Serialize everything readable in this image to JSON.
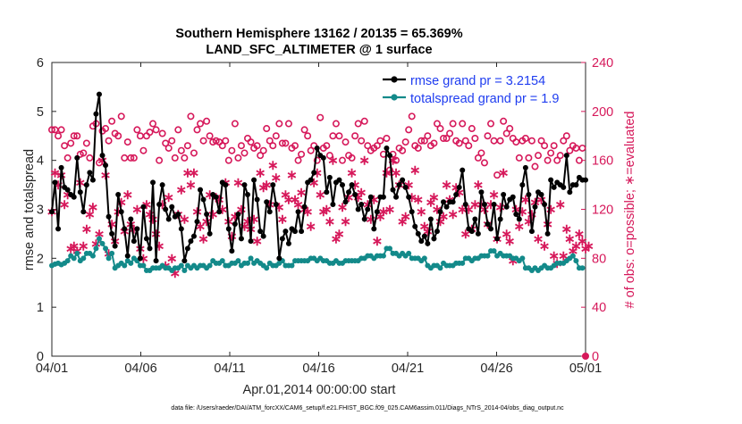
{
  "chart_data": {
    "type": "line",
    "title": "Southern Hemisphere 13162 / 20135 = 65.369%",
    "subtitle": "LAND_SFC_ALTIMETER @ 1 surface",
    "xlabel": "Apr.01,2014 00:00:00 start",
    "ylabel_left": "rmse and totalspread",
    "ylabel_right": "# of obs: o=possible; ∗=evaluated",
    "footnote": "data file: /Users/raeder/DAI/ATM_forcXX/CAM6_setup/f.e21.FHIST_BGC.f09_025.CAM6assim.011/Diags_NTrS_2014-04/obs_diag_output.nc",
    "x_ticks": [
      "04/01",
      "04/06",
      "04/11",
      "04/16",
      "04/21",
      "04/26",
      "05/01"
    ],
    "xlim_days": [
      0,
      30
    ],
    "ylim_left": [
      0,
      6
    ],
    "ylim_right": [
      0,
      240
    ],
    "y_ticks_left": [
      "0",
      "1",
      "2",
      "3",
      "4",
      "5",
      "6"
    ],
    "y_ticks_right": [
      "0",
      "40",
      "80",
      "120",
      "160",
      "200",
      "240"
    ],
    "grid": false,
    "legend_position": "top-right",
    "colors": {
      "rmse": "#000000",
      "spread": "#138a8a",
      "obs": "#d6185a"
    },
    "series": [
      {
        "name": "rmse grand pr = 3.2154",
        "axis": "left",
        "values": [
          2.95,
          3.55,
          2.6,
          3.85,
          3.45,
          3.4,
          3.3,
          3.25,
          4.05,
          3.35,
          2.95,
          3.5,
          3.75,
          3.6,
          4.95,
          5.35,
          4.1,
          3.9,
          2.85,
          2.5,
          2.25,
          3.3,
          2.95,
          2.6,
          2.05,
          2.8,
          2.35,
          2.6,
          2.0,
          3.05,
          2.4,
          2.2,
          3.55,
          1.95,
          3.1,
          3.5,
          3.0,
          2.8,
          3.05,
          2.85,
          2.9,
          2.6,
          1.95,
          2.2,
          2.35,
          2.45,
          2.75,
          3.4,
          3.2,
          2.9,
          2.5,
          3.3,
          3.25,
          2.95,
          3.55,
          3.5,
          2.6,
          2.15,
          2.7,
          2.9,
          2.4,
          3.5,
          3.3,
          2.35,
          3.6,
          3.2,
          2.55,
          2.45,
          3.15,
          2.95,
          3.5,
          3.1,
          2.0,
          2.4,
          2.55,
          2.3,
          2.6,
          2.55,
          2.95,
          2.55,
          3.05,
          3.55,
          3.6,
          3.75,
          4.25,
          4.1,
          4.05,
          3.35,
          3.65,
          3.1,
          3.55,
          3.6,
          3.5,
          3.15,
          3.35,
          3.5,
          3.3,
          3.0,
          3.1,
          2.8,
          3.0,
          3.25,
          2.6,
          2.95,
          3.25,
          3.25,
          4.25,
          4.1,
          3.4,
          3.25,
          3.5,
          3.6,
          3.45,
          3.25,
          2.95,
          2.65,
          2.5,
          2.35,
          2.45,
          2.3,
          2.8,
          2.4,
          2.55,
          2.95,
          3.15,
          3.05,
          3.15,
          3.15,
          3.3,
          3.45,
          3.8,
          3.1,
          2.6,
          2.55,
          2.8,
          2.5,
          3.35,
          3.1,
          2.7,
          2.6,
          3.1,
          2.4,
          2.8,
          3.3,
          3.05,
          3.2,
          3.25,
          2.9,
          2.8,
          3.5,
          3.85,
          3.3,
          2.55,
          3.05,
          3.35,
          3.3,
          3.1,
          2.5,
          3.6,
          3.45,
          3.55,
          3.5,
          3.45,
          4.1,
          3.35,
          3.5,
          3.5,
          3.65,
          3.6,
          3.6
        ]
      },
      {
        "name": "totalspread grand pr = 1.9",
        "axis": "left",
        "values": [
          1.85,
          1.88,
          1.9,
          1.87,
          1.9,
          1.95,
          2.05,
          2.0,
          2.1,
          1.95,
          2.0,
          2.1,
          2.1,
          2.05,
          2.2,
          2.4,
          2.3,
          2.2,
          2.0,
          2.1,
          1.8,
          1.85,
          1.9,
          1.85,
          1.95,
          1.9,
          2.0,
          1.95,
          1.85,
          1.85,
          1.75,
          1.75,
          1.8,
          1.8,
          1.8,
          1.85,
          1.8,
          1.8,
          1.75,
          1.8,
          1.8,
          1.85,
          1.75,
          1.85,
          1.8,
          1.85,
          1.8,
          1.85,
          1.85,
          1.8,
          1.85,
          1.95,
          1.9,
          1.9,
          1.95,
          1.85,
          1.85,
          1.9,
          1.9,
          1.95,
          1.85,
          1.9,
          1.9,
          2.0,
          1.9,
          1.95,
          1.9,
          1.85,
          1.8,
          1.9,
          1.85,
          1.85,
          1.9,
          1.95,
          1.85,
          1.85,
          1.85,
          1.95,
          1.95,
          1.95,
          1.95,
          1.95,
          2.0,
          2.0,
          1.95,
          2.0,
          1.95,
          1.95,
          1.9,
          1.9,
          1.95,
          1.9,
          1.9,
          1.95,
          1.95,
          1.95,
          1.95,
          1.95,
          2.0,
          2.0,
          2.05,
          2.05,
          2.0,
          2.05,
          2.05,
          2.05,
          2.2,
          2.2,
          2.1,
          2.1,
          2.05,
          2.1,
          2.05,
          2.1,
          2.0,
          2.0,
          2.0,
          1.95,
          2.0,
          1.85,
          1.8,
          1.85,
          1.85,
          1.8,
          1.9,
          1.85,
          1.85,
          1.85,
          1.9,
          1.9,
          1.9,
          2.0,
          2.0,
          1.95,
          2.0,
          2.0,
          2.05,
          2.05,
          2.05,
          2.15,
          2.15,
          2.05,
          2.1,
          2.05,
          2.05,
          2.05,
          2.0,
          2.0,
          1.95,
          2.0,
          1.8,
          1.8,
          1.75,
          1.8,
          1.75,
          1.8,
          1.85,
          1.8,
          1.8,
          1.85,
          1.9,
          1.9,
          1.9,
          1.95,
          2.0,
          2.05,
          1.95,
          1.8,
          1.8
        ]
      },
      {
        "name": "obs possible",
        "axis": "right",
        "values": [
          185,
          185,
          180,
          185,
          172,
          162,
          174,
          180,
          180,
          165,
          166,
          174,
          162,
          188,
          190,
          158,
          184,
          186,
          176,
          192,
          182,
          180,
          196,
          162,
          175,
          162,
          162,
          185,
          180,
          168,
          180,
          183,
          190,
          185,
          160,
          182,
          174,
          170,
          176,
          162,
          185,
          168,
          162,
          172,
          196,
          166,
          185,
          190,
          176,
          192,
          180,
          175,
          176,
          175,
          172,
          176,
          160,
          168,
          190,
          162,
          172,
          166,
          178,
          175,
          170,
          172,
          164,
          168,
          186,
          176,
          172,
          180,
          190,
          174,
          174,
          190,
          170,
          172,
          160,
          165,
          185,
          180,
          168,
          172,
          160,
          195,
          170,
          172,
          164,
          180,
          190,
          180,
          160,
          175,
          164,
          162,
          180,
          190,
          176,
          192,
          172,
          168,
          170,
          172,
          176,
          165,
          178,
          152,
          165,
          160,
          170,
          168,
          175,
          185,
          196,
          172,
          170,
          176,
          176,
          180,
          172,
          174,
          190,
          186,
          178,
          178,
          182,
          190,
          176,
          174,
          190,
          176,
          172,
          186,
          178,
          162,
          166,
          158,
          180,
          190,
          176,
          148,
          176,
          192,
          182,
          186,
          178,
          175,
          162,
          176,
          178,
          162,
          176,
          155,
          164,
          176,
          172,
          160,
          166,
          172,
          160,
          164,
          176,
          180,
          168,
          172,
          170,
          160,
          170
        ]
      },
      {
        "name": "obs evaluated",
        "axis": "right",
        "values": [
          118,
          150,
          140,
          148,
          124,
          132,
          88,
          90,
          86,
          142,
          90,
          104,
          116,
          122,
          92,
          100,
          160,
          148,
          84,
          108,
          94,
          118,
          126,
          102,
          132,
          108,
          104,
          120,
          88,
          80,
          124,
          116,
          112,
          100,
          90,
          124,
          74,
          130,
          80,
          68,
          116,
          136,
          112,
          150,
          140,
          150,
          118,
          106,
          96,
          110,
          132,
          116,
          130,
          128,
          120,
          142,
          110,
          98,
          114,
          142,
          120,
          106,
          110,
          104,
          112,
          94,
          150,
          138,
          140,
          124,
          156,
          146,
          122,
          112,
          132,
          128,
          148,
          128,
          124,
          134,
          120,
          118,
          106,
          142,
          150,
          132,
          118,
          120,
          110,
          160,
          96,
          100,
          122,
          110,
          130,
          150,
          140,
          130,
          134,
          160,
          124,
          112,
          128,
          94,
          114,
          118,
          150,
          120,
          160,
          150,
          140,
          110,
          114,
          140,
          130,
          152,
          128,
          118,
          106,
          102,
          126,
          130,
          120,
          110,
          114,
          140,
          128,
          116,
          138,
          134,
          120,
          100,
          120,
          104,
          124,
          140,
          124,
          120,
          108,
          124,
          132,
          96,
          122,
          150,
          100,
          94,
          78,
          120,
          106,
          118,
          128,
          110,
          116,
          126,
          96,
          128,
          90,
          108,
          120,
          82,
          76,
          124,
          82,
          104,
          96,
          86,
          90,
          100,
          94,
          88,
          90
        ]
      }
    ]
  }
}
